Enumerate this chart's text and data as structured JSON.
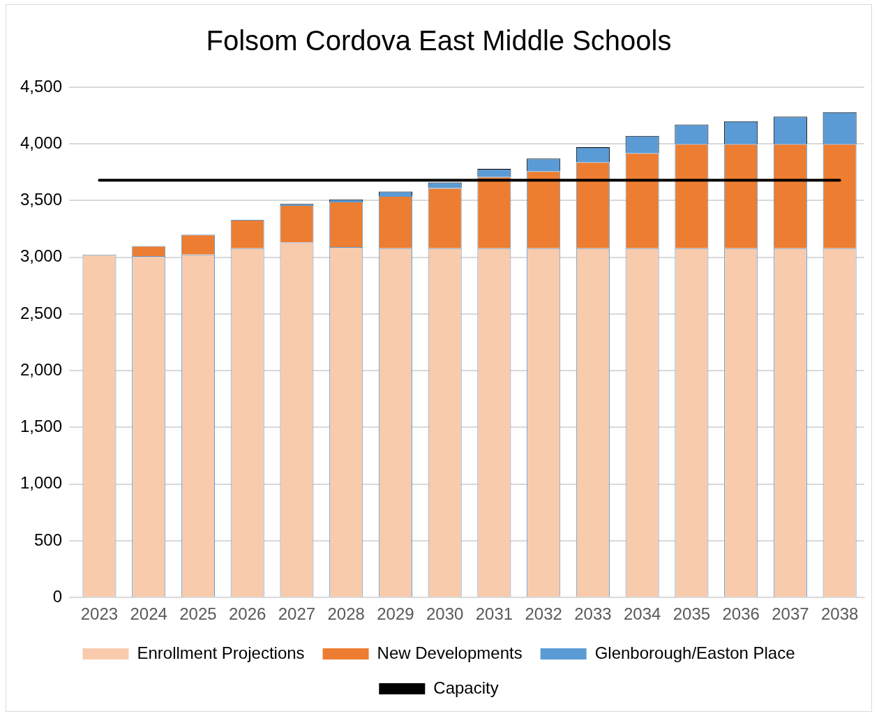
{
  "chart_data": {
    "type": "bar",
    "title": "Folsom Cordova East Middle Schools",
    "stacked": true,
    "categories": [
      "2023",
      "2024",
      "2025",
      "2026",
      "2027",
      "2028",
      "2029",
      "2030",
      "2031",
      "2032",
      "2033",
      "2034",
      "2035",
      "2036",
      "2037",
      "2038"
    ],
    "series": [
      {
        "name": "Enrollment Projections",
        "color": "#f8cbad",
        "values": [
          3025,
          3010,
          3025,
          3080,
          3130,
          3090,
          3080,
          3080,
          3080,
          3080,
          3080,
          3080,
          3080,
          3080,
          3080,
          3080
        ]
      },
      {
        "name": "New Developments",
        "color": "#ed7d31",
        "values": [
          0,
          90,
          175,
          250,
          330,
          400,
          460,
          530,
          630,
          680,
          760,
          840,
          920,
          920,
          920,
          920
        ]
      },
      {
        "name": "Glenborough/Easton Place",
        "color": "#5b9bd5",
        "values": [
          0,
          0,
          0,
          0,
          10,
          20,
          40,
          50,
          70,
          110,
          130,
          150,
          170,
          200,
          240,
          280
        ]
      },
      {
        "name": "Capacity",
        "type": "line",
        "color": "#000000",
        "values": [
          3680,
          3680,
          3680,
          3680,
          3680,
          3680,
          3680,
          3680,
          3680,
          3680,
          3680,
          3680,
          3680,
          3680,
          3680,
          3680
        ]
      }
    ],
    "ylim": [
      0,
      4500
    ],
    "yticks": [
      0,
      {
        "value": 500,
        "label": "500"
      },
      {
        "value": 1000,
        "label": "1,000"
      },
      {
        "value": 1500,
        "label": "1,500"
      },
      {
        "value": 2000,
        "label": "2,000"
      },
      {
        "value": 2500,
        "label": "2,500"
      },
      {
        "value": 3000,
        "label": "3,000"
      },
      {
        "value": 3500,
        "label": "3,500"
      },
      {
        "value": 4000,
        "label": "4,000"
      },
      {
        "value": 4500,
        "label": "4,500"
      }
    ],
    "grid": "y",
    "legend": "bottom",
    "marker": "none"
  }
}
